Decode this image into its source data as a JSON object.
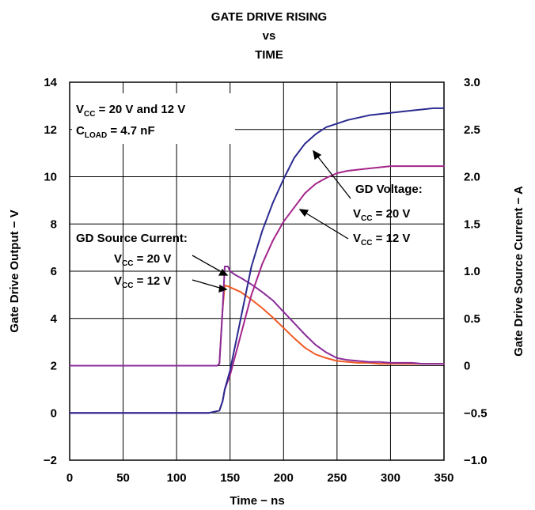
{
  "chart_data": {
    "type": "line",
    "title": [
      "GATE DRIVE RISING",
      "vs",
      "TIME"
    ],
    "xlabel": "Time − ns",
    "ylabel": "Gate Drive Output − V",
    "y2label": "Gate Drive Source Current − A",
    "xlim": [
      0,
      350
    ],
    "ylim": [
      -2,
      14
    ],
    "y2lim": [
      -1.0,
      3.0
    ],
    "xticks": [
      "0",
      "50",
      "100",
      "150",
      "200",
      "250",
      "300",
      "350"
    ],
    "yticks": [
      "−2",
      "0",
      "2",
      "4",
      "6",
      "8",
      "10",
      "12",
      "14"
    ],
    "y2ticks": [
      "−1.0",
      "−0.5",
      "0",
      "0.5",
      "1.0",
      "1.5",
      "2.0",
      "2.5",
      "3.0"
    ],
    "grid": true,
    "annotations": {
      "conditions_line1": "V",
      "conditions_line1_sub": "CC",
      "conditions_line1_rest": " = 20 V and 12 V",
      "conditions_line2": "C",
      "conditions_line2_sub": "LOAD",
      "conditions_line2_rest": " = 4.7 nF",
      "gd_voltage_title": "GD Voltage:",
      "gd_voltage_20": " = 20 V",
      "gd_voltage_12": " = 12 V",
      "gd_current_title": "GD Source Current:",
      "gd_current_20": " = 20 V",
      "gd_current_12": " = 12 V",
      "v": "V",
      "cc": "CC"
    },
    "colors": {
      "voltage_20v": "#2b2a8f",
      "voltage_12v": "#a4258a",
      "current_20v": "#8a2a9a",
      "current_12v": "#f05a24"
    },
    "series": [
      {
        "key": "voltage_20v",
        "axis": "left",
        "x": [
          0,
          130,
          140,
          143,
          145,
          150,
          160,
          170,
          180,
          190,
          200,
          210,
          220,
          230,
          240,
          250,
          260,
          270,
          280,
          290,
          300,
          310,
          320,
          330,
          340,
          350
        ],
        "y": [
          0,
          0,
          0.1,
          0.5,
          1.0,
          1.8,
          4.0,
          6.2,
          7.7,
          8.9,
          9.9,
          10.8,
          11.4,
          11.8,
          12.1,
          12.25,
          12.4,
          12.5,
          12.6,
          12.65,
          12.7,
          12.75,
          12.8,
          12.85,
          12.9,
          12.9
        ]
      },
      {
        "key": "voltage_12v",
        "axis": "left",
        "x": [
          0,
          130,
          140,
          143,
          145,
          150,
          160,
          170,
          180,
          190,
          200,
          210,
          220,
          230,
          240,
          250,
          260,
          270,
          280,
          290,
          300,
          310,
          320,
          330,
          340,
          350
        ],
        "y": [
          0,
          0,
          0.1,
          0.5,
          1.0,
          1.6,
          3.3,
          5.0,
          6.3,
          7.3,
          8.1,
          8.7,
          9.3,
          9.7,
          9.95,
          10.15,
          10.25,
          10.3,
          10.35,
          10.4,
          10.45,
          10.45,
          10.45,
          10.45,
          10.45,
          10.45
        ]
      },
      {
        "key": "current_20v",
        "axis": "right",
        "x": [
          0,
          138,
          140,
          143,
          145,
          148,
          150,
          155,
          160,
          170,
          180,
          190,
          200,
          210,
          220,
          230,
          240,
          250,
          260,
          270,
          280,
          290,
          300,
          310,
          320,
          330,
          340,
          350
        ],
        "y": [
          0,
          0,
          0.02,
          0.6,
          1.05,
          1.05,
          1.0,
          0.96,
          0.93,
          0.86,
          0.78,
          0.69,
          0.57,
          0.45,
          0.33,
          0.22,
          0.14,
          0.08,
          0.06,
          0.05,
          0.04,
          0.04,
          0.03,
          0.03,
          0.03,
          0.02,
          0.02,
          0.02
        ]
      },
      {
        "key": "current_12v",
        "axis": "right",
        "x": [
          0,
          138,
          140,
          143,
          145,
          148,
          150,
          160,
          170,
          180,
          190,
          200,
          210,
          220,
          230,
          240,
          250,
          260,
          270,
          280,
          290,
          300,
          310,
          320,
          330,
          340,
          350
        ],
        "y": [
          0,
          0,
          0.02,
          0.6,
          0.85,
          0.84,
          0.83,
          0.78,
          0.7,
          0.61,
          0.51,
          0.4,
          0.29,
          0.19,
          0.12,
          0.08,
          0.05,
          0.04,
          0.03,
          0.03,
          0.02,
          0.02,
          0.02,
          0.02,
          0.02,
          0.02,
          0.02
        ]
      }
    ]
  }
}
